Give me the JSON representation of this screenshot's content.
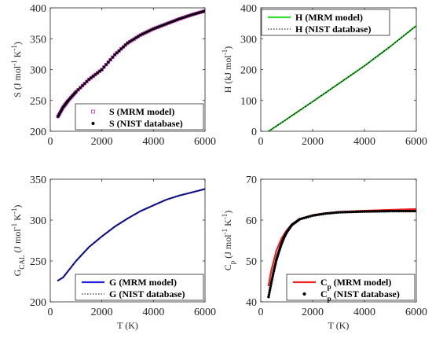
{
  "chart_data": [
    {
      "type": "scatter",
      "xlabel": "",
      "ylabel": "S (J mol^-1 K^-1)",
      "xlim": [
        0,
        6000
      ],
      "ylim": [
        200,
        400
      ],
      "xticks": [
        0,
        2000,
        4000,
        6000
      ],
      "yticks": [
        200,
        250,
        300,
        350,
        400
      ],
      "legend_position": "bottom-right",
      "series": [
        {
          "name": "S (MRM model)",
          "style": "open-square",
          "color": "#cc33cc",
          "x": [
            300,
            500,
            700,
            1000,
            1500,
            2000,
            2500,
            3000,
            3500,
            4000,
            4500,
            5000,
            5500,
            6000
          ],
          "y": [
            224,
            239,
            250,
            264,
            284,
            300,
            324,
            343,
            356,
            366,
            374,
            382,
            389,
            395
          ]
        },
        {
          "name": "S (NIST database)",
          "style": "dot",
          "color": "#000000",
          "x": [
            300,
            500,
            700,
            1000,
            1500,
            2000,
            2500,
            3000,
            3500,
            4000,
            4500,
            5000,
            5500,
            6000
          ],
          "y": [
            224,
            239,
            250,
            264,
            284,
            300,
            324,
            343,
            356,
            366,
            374,
            382,
            389,
            395
          ]
        }
      ]
    },
    {
      "type": "line",
      "xlabel": "",
      "ylabel": "H (kJ mol^-1)",
      "xlim": [
        0,
        6000
      ],
      "ylim": [
        0,
        400
      ],
      "xticks": [
        0,
        2000,
        4000,
        6000
      ],
      "yticks": [
        0,
        100,
        200,
        300,
        400
      ],
      "legend_position": "top-left",
      "series": [
        {
          "name": "H (MRM model)",
          "style": "solid",
          "color": "#33dd33",
          "x": [
            300,
            1000,
            2000,
            3000,
            4000,
            5000,
            6000
          ],
          "y": [
            0,
            39,
            96,
            154,
            212,
            275,
            342
          ]
        },
        {
          "name": "H (NIST database)",
          "style": "dotted",
          "color": "#000000",
          "x": [
            300,
            1000,
            2000,
            3000,
            4000,
            5000,
            6000
          ],
          "y": [
            0,
            39,
            96,
            154,
            212,
            275,
            342
          ]
        }
      ]
    },
    {
      "type": "line",
      "xlabel": "T (K)",
      "ylabel": "G_CAL (J mol^-1 K^-1)",
      "xlim": [
        0,
        6000
      ],
      "ylim": [
        200,
        350
      ],
      "xticks": [
        0,
        2000,
        4000,
        6000
      ],
      "yticks": [
        200,
        250,
        300,
        350
      ],
      "legend_position": "bottom-right",
      "series": [
        {
          "name": "G (MRM model)",
          "style": "solid",
          "color": "#2222dd",
          "x": [
            300,
            500,
            1000,
            1500,
            2000,
            2500,
            3000,
            3500,
            4000,
            4500,
            5000,
            5500,
            6000
          ],
          "y": [
            226,
            230,
            250,
            267,
            280,
            292,
            302,
            311,
            318,
            325,
            330,
            334,
            338
          ]
        },
        {
          "name": "G (NIST database)",
          "style": "dotted",
          "color": "#000000",
          "x": [
            300,
            500,
            1000,
            1500,
            2000,
            2500,
            3000,
            3500,
            4000,
            4500,
            5000,
            5500,
            6000
          ],
          "y": [
            226,
            230,
            250,
            267,
            280,
            292,
            302,
            311,
            318,
            325,
            330,
            334,
            338
          ]
        }
      ]
    },
    {
      "type": "line",
      "xlabel": "T (K)",
      "ylabel": "C_p (J mol^-1 K^-1)",
      "xlim": [
        0,
        6000
      ],
      "ylim": [
        40,
        70
      ],
      "xticks": [
        0,
        2000,
        4000,
        6000
      ],
      "yticks": [
        40,
        50,
        60,
        70
      ],
      "legend_position": "bottom-right",
      "series": [
        {
          "name": "C_p (MRM model)",
          "style": "solid",
          "color": "#ee2222",
          "x": [
            300,
            400,
            500,
            600,
            800,
            1000,
            1200,
            1500,
            2000,
            2500,
            3000,
            4000,
            5000,
            6000
          ],
          "y": [
            44.0,
            47.5,
            50.0,
            52.5,
            55.5,
            57.5,
            59.0,
            60.3,
            61.2,
            61.7,
            62.0,
            62.3,
            62.5,
            62.7
          ]
        },
        {
          "name": "C_p (NIST database)",
          "style": "dot",
          "color": "#000000",
          "x": [
            300,
            400,
            500,
            600,
            700,
            800,
            900,
            1000,
            1200,
            1500,
            2000,
            2500,
            3000,
            3500,
            4000,
            4500,
            5000,
            5500,
            6000
          ],
          "y": [
            41.2,
            44.5,
            47.5,
            50.2,
            52.3,
            54.2,
            55.8,
            57.0,
            58.8,
            60.2,
            61.1,
            61.6,
            61.9,
            62.0,
            62.1,
            62.15,
            62.2,
            62.2,
            62.2
          ]
        }
      ]
    }
  ]
}
